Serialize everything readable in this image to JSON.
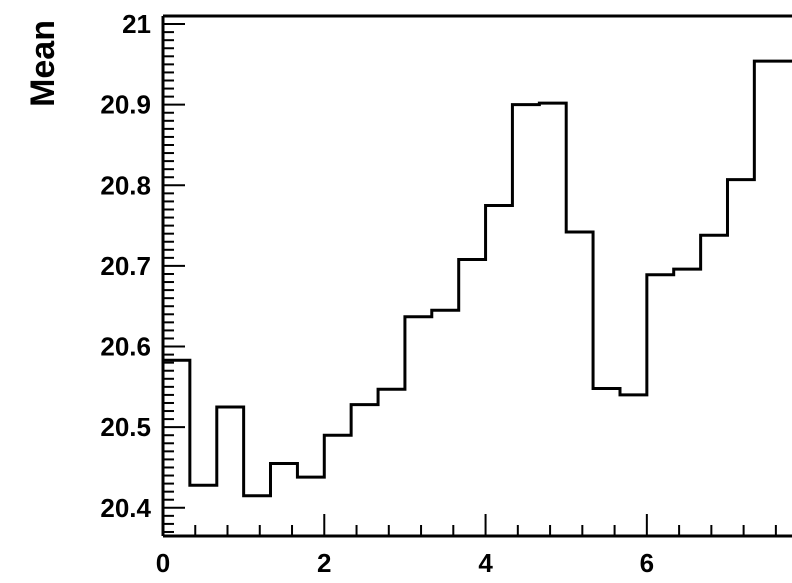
{
  "chart_data": {
    "type": "histogram",
    "title": "",
    "xlabel": "",
    "ylabel": "Mean",
    "xlim": [
      0,
      7.8
    ],
    "ylim": [
      20.365,
      21.01
    ],
    "bin_width": 0.333,
    "bins": [
      {
        "x0": 0.0,
        "x1": 0.333,
        "y": 20.583
      },
      {
        "x0": 0.333,
        "x1": 0.667,
        "y": 20.428
      },
      {
        "x0": 0.667,
        "x1": 1.0,
        "y": 20.525
      },
      {
        "x0": 1.0,
        "x1": 1.333,
        "y": 20.415
      },
      {
        "x0": 1.333,
        "x1": 1.667,
        "y": 20.455
      },
      {
        "x0": 1.667,
        "x1": 2.0,
        "y": 20.438
      },
      {
        "x0": 2.0,
        "x1": 2.333,
        "y": 20.49
      },
      {
        "x0": 2.333,
        "x1": 2.667,
        "y": 20.528
      },
      {
        "x0": 2.667,
        "x1": 3.0,
        "y": 20.547
      },
      {
        "x0": 3.0,
        "x1": 3.333,
        "y": 20.637
      },
      {
        "x0": 3.333,
        "x1": 3.667,
        "y": 20.645
      },
      {
        "x0": 3.667,
        "x1": 4.0,
        "y": 20.708
      },
      {
        "x0": 4.0,
        "x1": 4.333,
        "y": 20.775
      },
      {
        "x0": 4.333,
        "x1": 4.667,
        "y": 20.9
      },
      {
        "x0": 4.667,
        "x1": 5.0,
        "y": 20.902
      },
      {
        "x0": 5.0,
        "x1": 5.333,
        "y": 20.742
      },
      {
        "x0": 5.333,
        "x1": 5.667,
        "y": 20.548
      },
      {
        "x0": 5.667,
        "x1": 6.0,
        "y": 20.54
      },
      {
        "x0": 6.0,
        "x1": 6.333,
        "y": 20.689
      },
      {
        "x0": 6.333,
        "x1": 6.667,
        "y": 20.696
      },
      {
        "x0": 6.667,
        "x1": 7.0,
        "y": 20.738
      },
      {
        "x0": 7.0,
        "x1": 7.333,
        "y": 20.807
      },
      {
        "x0": 7.333,
        "x1": 7.8,
        "y": 20.954
      }
    ],
    "x_ticks": [
      {
        "value": 0,
        "label": "0"
      },
      {
        "value": 2,
        "label": "2"
      },
      {
        "value": 4,
        "label": "4"
      },
      {
        "value": 6,
        "label": "6"
      }
    ],
    "y_ticks": [
      {
        "value": 20.4,
        "label": "20.4"
      },
      {
        "value": 20.5,
        "label": "20.5"
      },
      {
        "value": 20.6,
        "label": "20.6"
      },
      {
        "value": 20.7,
        "label": "20.7"
      },
      {
        "value": 20.8,
        "label": "20.8"
      },
      {
        "value": 20.9,
        "label": "20.9"
      },
      {
        "value": 21.0,
        "label": "21"
      }
    ],
    "grid": false,
    "legend": "none",
    "line_color": "#000000"
  }
}
